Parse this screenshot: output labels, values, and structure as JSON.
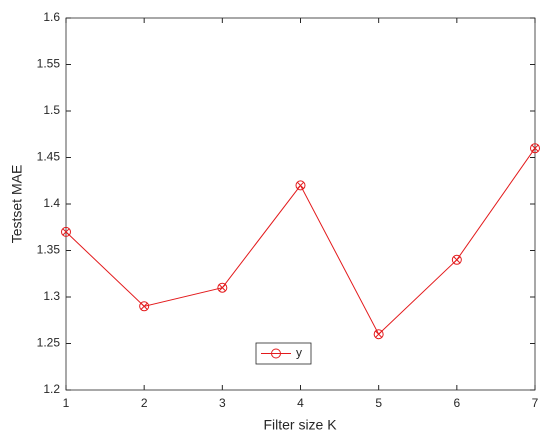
{
  "chart_data": {
    "type": "line",
    "xlabel": "Filter size K",
    "ylabel": "Testset MAE",
    "x": [
      1,
      2,
      3,
      4,
      5,
      6,
      7
    ],
    "series": [
      {
        "name": "y",
        "color": "#e31a1c",
        "values": [
          1.37,
          1.29,
          1.31,
          1.42,
          1.26,
          1.34,
          1.46
        ]
      }
    ],
    "xlim": [
      1,
      7
    ],
    "xticks": [
      1,
      2,
      3,
      4,
      5,
      6,
      7
    ],
    "ylim": [
      1.2,
      1.6
    ],
    "yticks": [
      1.2,
      1.25,
      1.3,
      1.35,
      1.4,
      1.45,
      1.5,
      1.55,
      1.6
    ],
    "marker": "circle-x",
    "legend": "south",
    "grid": false
  }
}
